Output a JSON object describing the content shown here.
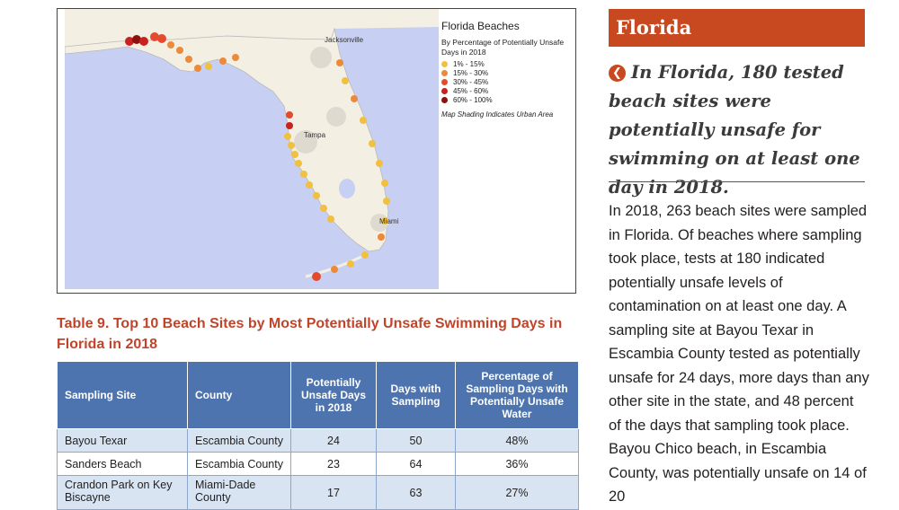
{
  "map": {
    "cities": {
      "jacksonville": "Jacksonville",
      "tampa": "Tampa",
      "miami": "Miami"
    },
    "legend": {
      "title": "Florida Beaches",
      "subtitle": "By Percentage of Potentially Unsafe Days in 2018",
      "items": [
        {
          "label": "1% - 15%",
          "color": "#f0c040"
        },
        {
          "label": "15% - 30%",
          "color": "#ec8a3a"
        },
        {
          "label": "30% - 45%",
          "color": "#e34a2f"
        },
        {
          "label": "45% - 60%",
          "color": "#c8211f"
        },
        {
          "label": "60% - 100%",
          "color": "#8e0f0f"
        }
      ],
      "note": "Map Shading Indicates Urban Area"
    }
  },
  "table": {
    "caption": "Table 9. Top 10 Beach Sites by Most Potentially Unsafe Swimming Days in Florida in 2018",
    "headers": [
      "Sampling Site",
      "County",
      "Potentially Unsafe Days in 2018",
      "Days with Sampling",
      "Percentage of Sampling Days with Potentially Unsafe Water"
    ],
    "rows": [
      [
        "Bayou Texar",
        "Escambia County",
        "24",
        "50",
        "48%"
      ],
      [
        "Sanders Beach",
        "Escambia County",
        "23",
        "64",
        "36%"
      ],
      [
        "Crandon Park on Key Biscayne",
        "Miami-Dade County",
        "17",
        "63",
        "27%"
      ]
    ]
  },
  "sidebar": {
    "state": "Florida",
    "callout": "In Florida, 180 tested beach sites were potentially unsafe for swimming on at least one day in 2018.",
    "body": "In 2018, 263 beach sites were sampled in Florida. Of beaches where sampling took place, tests at 180 indicated potentially unsafe levels of contamination on at least one day. A sampling site at Bayou Texar in Escambia County tested as potentially unsafe for 24 days, more days than any other site in the state, and 48 percent of the days that sampling took place. Bayou Chico beach, in Escambia County, was potentially unsafe on 14 of 20"
  }
}
